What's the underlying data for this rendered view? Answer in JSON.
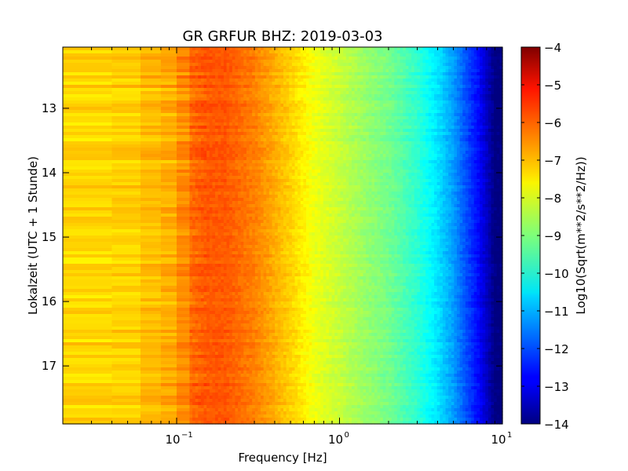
{
  "chart_data": {
    "type": "heatmap",
    "title": "GR GRFUR BHZ: 2019-03-03",
    "xlabel": "Frequency [Hz]",
    "ylabel": "Lokalzeit (UTC + 1 Stunde)",
    "x_scale": "log",
    "xlim": [
      0.02,
      10
    ],
    "x_tick_values": [
      0.1,
      1,
      10
    ],
    "x_tick_labels": [
      {
        "base": "10",
        "exp": "−1"
      },
      {
        "base": "10",
        "exp": "0"
      },
      {
        "base": "10",
        "exp": "1"
      }
    ],
    "ylim": [
      12.05,
      17.9
    ],
    "y_inverted": true,
    "y_ticks": [
      13,
      14,
      15,
      16,
      17
    ],
    "colorbar": {
      "label": "Log10(Sqrt(m**2/s**2/Hz))",
      "colormap": "jet",
      "range": [
        -14,
        -4
      ],
      "ticks": [
        -4,
        -5,
        -6,
        -7,
        -8,
        -9,
        -10,
        -11,
        -12,
        -13,
        -14
      ],
      "tick_labels": [
        "−4",
        "−5",
        "−6",
        "−7",
        "−8",
        "−9",
        "−10",
        "−11",
        "−12",
        "−13",
        "−14"
      ]
    },
    "spectrum_profile": {
      "freq_hz": [
        0.02,
        0.04,
        0.06,
        0.08,
        0.1,
        0.12,
        0.15,
        0.2,
        0.3,
        0.5,
        0.7,
        1.0,
        1.5,
        2.0,
        3.0,
        4.0,
        5.0,
        6.0,
        7.0,
        8.0,
        9.0,
        10.0
      ],
      "value": [
        -7.3,
        -7.4,
        -7.2,
        -7.0,
        -6.9,
        -6.3,
        -6.1,
        -6.1,
        -6.5,
        -7.3,
        -7.9,
        -8.3,
        -8.8,
        -9.1,
        -9.8,
        -10.5,
        -11.2,
        -12.0,
        -12.6,
        -13.3,
        -14.0,
        -14.0
      ]
    }
  }
}
